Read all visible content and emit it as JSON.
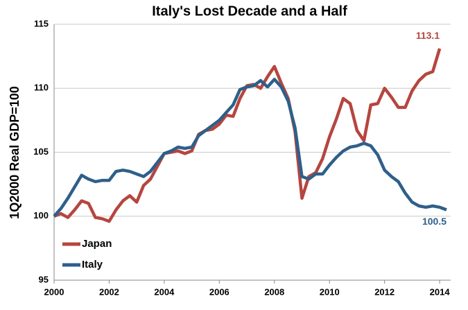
{
  "chart_data": {
    "type": "line",
    "title": "Italy's Lost Decade and a Half",
    "y_label": "1Q2000 Real GDP=100",
    "x": [
      2000,
      2000.25,
      2000.5,
      2000.75,
      2001,
      2001.25,
      2001.5,
      2001.75,
      2002,
      2002.25,
      2002.5,
      2002.75,
      2003,
      2003.25,
      2003.5,
      2003.75,
      2004,
      2004.25,
      2004.5,
      2004.75,
      2005,
      2005.25,
      2005.5,
      2005.75,
      2006,
      2006.25,
      2006.5,
      2006.75,
      2007,
      2007.25,
      2007.5,
      2007.75,
      2008,
      2008.25,
      2008.5,
      2008.75,
      2009,
      2009.25,
      2009.5,
      2009.75,
      2010,
      2010.25,
      2010.5,
      2010.75,
      2011,
      2011.25,
      2011.5,
      2011.75,
      2012,
      2012.25,
      2012.5,
      2012.75,
      2013,
      2013.25,
      2013.5,
      2013.75,
      2014,
      2014.25
    ],
    "series": [
      {
        "name": "Japan",
        "color": "#b5463f",
        "values": [
          100,
          100.2,
          99.9,
          100.5,
          101.2,
          101.0,
          99.9,
          99.8,
          99.6,
          100.5,
          101.2,
          101.6,
          101.1,
          102.4,
          102.9,
          103.9,
          104.9,
          105.0,
          105.1,
          104.9,
          105.1,
          106.4,
          106.7,
          106.8,
          107.2,
          107.9,
          107.8,
          109.2,
          110.2,
          110.3,
          110.0,
          110.9,
          111.7,
          110.4,
          109.2,
          106.6,
          101.4,
          103.1,
          103.4,
          104.5,
          106.2,
          107.6,
          109.2,
          108.8,
          106.7,
          105.9,
          108.7,
          108.8,
          110.0,
          109.3,
          108.5,
          108.5,
          109.8,
          110.6,
          111.1,
          111.3,
          113.1,
          null
        ]
      },
      {
        "name": "Italy",
        "color": "#2f5f8a",
        "values": [
          100.0,
          100.6,
          101.4,
          102.3,
          103.2,
          102.9,
          102.7,
          102.8,
          102.8,
          103.5,
          103.6,
          103.5,
          103.3,
          103.1,
          103.5,
          104.2,
          104.9,
          105.1,
          105.4,
          105.3,
          105.4,
          106.3,
          106.7,
          107.1,
          107.5,
          108.1,
          108.7,
          109.9,
          110.1,
          110.2,
          110.6,
          110.1,
          110.7,
          110.1,
          109.0,
          106.9,
          103.1,
          102.9,
          103.3,
          103.3,
          104.0,
          104.6,
          105.1,
          105.4,
          105.5,
          105.7,
          105.5,
          104.8,
          103.6,
          103.1,
          102.7,
          101.8,
          101.1,
          100.8,
          100.7,
          100.8,
          100.7,
          100.5
        ]
      }
    ],
    "xlim": [
      2000,
      2014.4
    ],
    "ylim": [
      95,
      115
    ],
    "xticks": [
      2000,
      2002,
      2004,
      2006,
      2008,
      2010,
      2012,
      2014
    ],
    "yticks": [
      95,
      100,
      105,
      110,
      115
    ],
    "grid": true,
    "legend": "lower left"
  }
}
